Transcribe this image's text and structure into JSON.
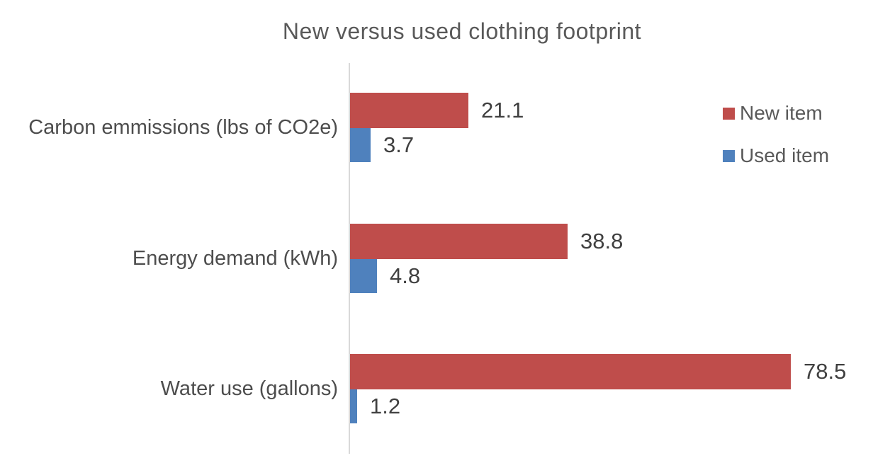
{
  "chart_data": {
    "type": "bar",
    "orientation": "horizontal",
    "title": "New versus used clothing footprint",
    "categories": [
      "Carbon emmissions (lbs of CO2e)",
      "Energy demand (kWh)",
      "Water use (gallons)"
    ],
    "series": [
      {
        "name": "New item",
        "color": "#bf4d4b",
        "values": [
          21.1,
          38.8,
          78.5
        ]
      },
      {
        "name": "Used item",
        "color": "#4f81bd",
        "values": [
          3.7,
          4.8,
          1.2
        ]
      }
    ],
    "data_labels": [
      "21.1",
      "3.7",
      "38.8",
      "4.8",
      "78.5",
      "1.2"
    ],
    "xlabel": "",
    "ylabel": "",
    "xlim": [
      0,
      80
    ],
    "grid": false,
    "legend_position": "right",
    "axis_line_color": "#d9d9d9",
    "title_color": "#595959",
    "label_color": "#404040"
  }
}
